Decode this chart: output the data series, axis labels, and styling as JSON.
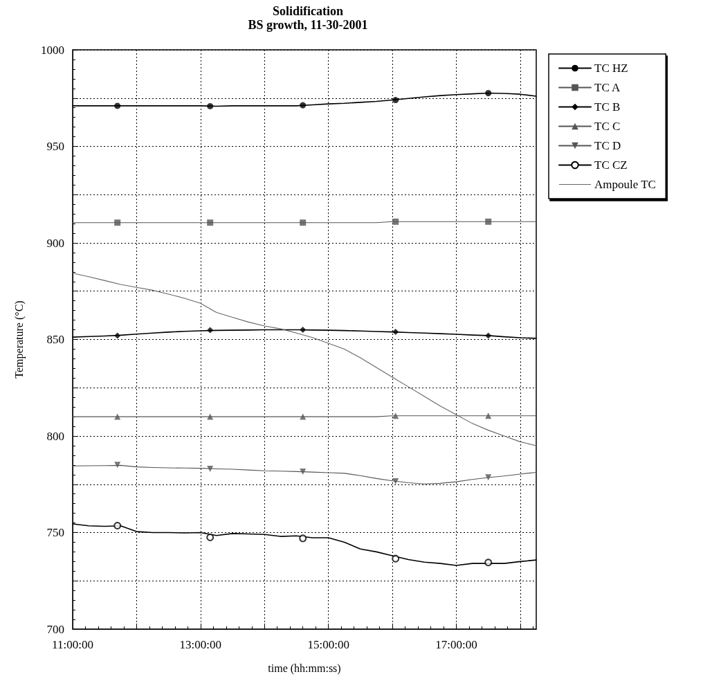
{
  "chart_data": {
    "type": "line",
    "title": "Solidification",
    "subtitle": "BS growth, 11-30-2001",
    "xlabel": "time (hh:mm:ss)",
    "ylabel": "Temperature (°C)",
    "x": [
      11,
      11.25,
      11.5,
      11.75,
      12,
      12.25,
      12.5,
      12.75,
      13,
      13.25,
      13.5,
      13.75,
      14,
      14.25,
      14.5,
      14.75,
      15,
      15.25,
      15.5,
      15.75,
      16,
      16.25,
      16.5,
      16.75,
      17,
      17.25,
      17.5,
      17.75,
      18,
      18.25
    ],
    "series": [
      {
        "name": "TC HZ",
        "color": "#000000",
        "values": [
          971,
          971,
          971,
          971,
          971,
          971,
          971,
          971,
          971,
          970.8,
          971,
          971,
          971,
          971,
          971,
          971.5,
          972,
          972.3,
          972.8,
          973.3,
          974,
          974.8,
          975.6,
          976.3,
          976.8,
          977.2,
          977.6,
          977.4,
          977,
          976
        ]
      },
      {
        "type": "scatter",
        "color": "#000000",
        "marker": "circle",
        "x": [
          11.7,
          13.15,
          14.6,
          16.05,
          17.5
        ],
        "values": [
          971,
          970.8,
          971.3,
          974,
          977.6
        ]
      },
      {
        "name": "TC A",
        "color": "#555555",
        "values": [
          910.5,
          910.5,
          910.5,
          910.5,
          910.5,
          910.5,
          910.5,
          910.5,
          910.5,
          910.5,
          910.5,
          910.5,
          910.5,
          910.5,
          910.5,
          910.5,
          910.5,
          910.5,
          910.5,
          910.5,
          911,
          911,
          911,
          911,
          911,
          911,
          911,
          911,
          911,
          911
        ]
      },
      {
        "type": "scatter",
        "color": "#555555",
        "marker": "square",
        "x": [
          11.7,
          13.15,
          14.6,
          16.05,
          17.5
        ],
        "values": [
          910.5,
          910.5,
          910.5,
          911,
          911
        ]
      },
      {
        "name": "TC B",
        "color": "#000000",
        "values": [
          851.2,
          851.5,
          851.8,
          852.2,
          852.8,
          853.3,
          853.8,
          854.2,
          854.5,
          854.7,
          854.8,
          854.9,
          855,
          855,
          855,
          854.9,
          854.8,
          854.6,
          854.4,
          854.1,
          853.9,
          853.6,
          853.3,
          853,
          852.7,
          852.3,
          852,
          851.4,
          850.9,
          850.6
        ]
      },
      {
        "type": "scatter",
        "color": "#000000",
        "marker": "diamond",
        "x": [
          11.7,
          13.15,
          14.6,
          16.05,
          17.5
        ],
        "values": [
          852,
          854.8,
          855,
          853.9,
          852
        ]
      },
      {
        "name": "TC C",
        "color": "#555555",
        "values": [
          810,
          810,
          810,
          810,
          810,
          810,
          810,
          810,
          810,
          810,
          810,
          810,
          810,
          810,
          810,
          810,
          810,
          810,
          810,
          810,
          810.5,
          810.5,
          810.5,
          810.5,
          810.5,
          810.5,
          810.5,
          810.5,
          810.5,
          810.5
        ]
      },
      {
        "type": "scatter",
        "color": "#555555",
        "marker": "triangle",
        "x": [
          11.7,
          13.15,
          14.6,
          16.05,
          17.5
        ],
        "values": [
          810,
          810,
          810,
          810.5,
          810.5
        ]
      },
      {
        "name": "TC D",
        "color": "#555555",
        "values": [
          784.5,
          784.6,
          784.7,
          784.8,
          784,
          783.7,
          783.5,
          783.4,
          783.3,
          783,
          782.8,
          782.4,
          782,
          781.8,
          781.6,
          781.3,
          781,
          780.7,
          779.5,
          778,
          776.8,
          775.8,
          775.2,
          775.5,
          776.3,
          777.5,
          778.5,
          779.3,
          780.3,
          781.2
        ]
      },
      {
        "type": "scatter",
        "color": "#555555",
        "marker": "triangle-down",
        "x": [
          11.7,
          13.15,
          14.6,
          16.05,
          17.5
        ],
        "values": [
          785,
          783,
          781.5,
          776.5,
          778.6
        ]
      },
      {
        "name": "TC CZ",
        "color": "#000000",
        "values": [
          754.5,
          753.5,
          753.2,
          753.5,
          750.5,
          750,
          750,
          749.8,
          750,
          748.5,
          749.5,
          749.3,
          749,
          748,
          748.3,
          747.3,
          747.3,
          745,
          741.5,
          740,
          738,
          736,
          734.7,
          734,
          733,
          734,
          734,
          734,
          735,
          735.8
        ]
      },
      {
        "type": "scatter",
        "color": "#000000",
        "marker": "circle-open",
        "x": [
          11.7,
          13.15,
          14.6,
          16.05,
          17.5
        ],
        "values": [
          753.6,
          747.5,
          747,
          736.5,
          734.5
        ]
      },
      {
        "name": "Ampoule TC",
        "color": "#666666",
        "values": [
          884.3,
          882.5,
          880.5,
          878.5,
          877,
          875.5,
          873.5,
          871.3,
          868.7,
          864,
          861.5,
          859,
          857,
          855.5,
          853.3,
          851,
          848,
          845,
          840.5,
          835.5,
          830.5,
          825.5,
          820.5,
          815.5,
          811,
          806.5,
          803,
          800,
          797,
          795
        ]
      }
    ],
    "xlim": [
      11,
      18.25
    ],
    "xticks": [
      {
        "value": 11,
        "label": "11:00:00"
      },
      {
        "value": 12,
        "label": null
      },
      {
        "value": 13,
        "label": "13:00:00"
      },
      {
        "value": 14,
        "label": null
      },
      {
        "value": 15,
        "label": "15:00:00"
      },
      {
        "value": 16,
        "label": null
      },
      {
        "value": 17,
        "label": "17:00:00"
      },
      {
        "value": 18,
        "label": null
      }
    ],
    "ylim": [
      700,
      1000
    ],
    "yticks": [
      700,
      {
        "value": 725,
        "label": null
      },
      750,
      {
        "value": 775,
        "label": null
      },
      800,
      {
        "value": 825,
        "label": null
      },
      850,
      {
        "value": 875,
        "label": null
      },
      900,
      {
        "value": 925,
        "label": null
      },
      950,
      {
        "value": 975,
        "label": null
      },
      1000
    ],
    "grid": true,
    "legend": "top right",
    "marker": "none",
    "line_style": "solid"
  }
}
